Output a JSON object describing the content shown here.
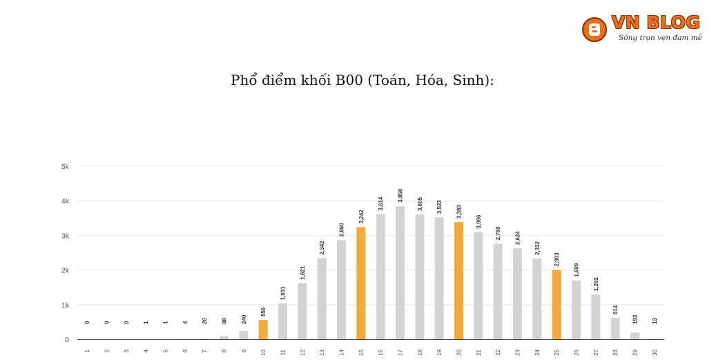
{
  "header": {
    "title": "Phổ điểm khối B00 (Toán, Hóa, Sinh):"
  },
  "logo": {
    "brand": "VN BLOG",
    "tagline": "Sống trọn vẹn đam mê",
    "icon": "blogger-b-icon",
    "color": "#ef6c1a"
  },
  "colors": {
    "bar_default": "#d3d3d3",
    "bar_highlight": "#f2aa3c",
    "grid": "#e6e6e6",
    "axis": "#444444"
  },
  "chart_data": {
    "type": "bar",
    "title": "",
    "xlabel": "",
    "ylabel": "",
    "ylim": [
      0,
      5000
    ],
    "yticks": [
      0,
      1000,
      2000,
      3000,
      4000,
      5000
    ],
    "ytick_labels": [
      "0",
      "1k",
      "2k",
      "3k",
      "4k",
      "5k"
    ],
    "grid": true,
    "legend": "none",
    "categories": [
      "1",
      "2",
      "3",
      "4",
      "5",
      "6",
      "7",
      "8",
      "9",
      "10",
      "11",
      "12",
      "13",
      "14",
      "15",
      "16",
      "17",
      "18",
      "19",
      "20",
      "21",
      "22",
      "23",
      "24",
      "25",
      "26",
      "27",
      "28",
      "29",
      "30"
    ],
    "values": [
      0,
      0,
      0,
      1,
      1,
      4,
      20,
      88,
      240,
      556,
      1031,
      1621,
      2342,
      2860,
      3242,
      3614,
      3850,
      3605,
      3523,
      3383,
      3096,
      2760,
      2624,
      2332,
      2003,
      1699,
      1292,
      614,
      193,
      13
    ],
    "value_labels": [
      "0",
      "0",
      "0",
      "1",
      "1",
      "4",
      "20",
      "88",
      "240",
      "556",
      "1,031",
      "1,621",
      "2,342",
      "2,860",
      "3,242",
      "3,614",
      "3,850",
      "3,605",
      "3,523",
      "3,383",
      "3,096",
      "2,760",
      "2,624",
      "2,332",
      "2,003",
      "1,699",
      "1,292",
      "614",
      "193",
      "13"
    ],
    "highlighted_categories": [
      "10",
      "15",
      "20",
      "25"
    ]
  }
}
